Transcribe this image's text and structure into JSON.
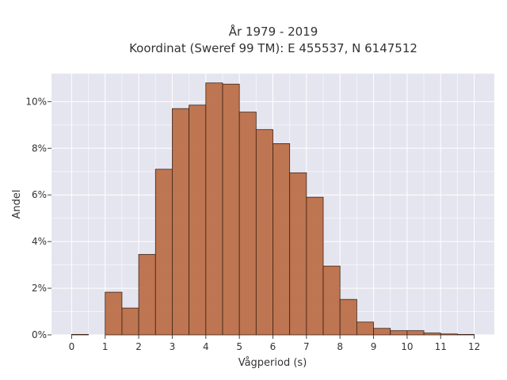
{
  "chart_data": {
    "type": "bar",
    "title": [
      "År 1979 - 2019",
      "Koordinat (Sweref 99 TM): E 455537, N 6147512"
    ],
    "xlabel": "Vågperiod (s)",
    "ylabel": "Andel",
    "xlim": [
      -0.6,
      12.6
    ],
    "ylim": [
      0,
      11.2
    ],
    "xticks": [
      0,
      1,
      2,
      3,
      4,
      5,
      6,
      7,
      8,
      9,
      10,
      11,
      12
    ],
    "yticks": [
      0,
      2,
      4,
      6,
      8,
      10
    ],
    "ytick_suffix": "%",
    "grid": true,
    "bin_width": 0.5,
    "bins_start": [
      0,
      0.5,
      1,
      1.5,
      2,
      2.5,
      3,
      3.5,
      4,
      4.5,
      5,
      5.5,
      6,
      6.5,
      7,
      7.5,
      8,
      8.5,
      9,
      9.5,
      10,
      10.5,
      11,
      11.5
    ],
    "values": [
      0.02,
      0,
      1.83,
      1.15,
      3.45,
      7.1,
      9.7,
      9.85,
      10.8,
      10.75,
      9.55,
      8.8,
      8.2,
      6.95,
      5.9,
      2.95,
      1.52,
      0.55,
      0.28,
      0.18,
      0.18,
      0.08,
      0.04,
      0.02
    ],
    "colors": {
      "bar": "#b9683f",
      "edge": "#3c2418",
      "background": "#e5e5ef",
      "grid": "#ffffff"
    }
  }
}
